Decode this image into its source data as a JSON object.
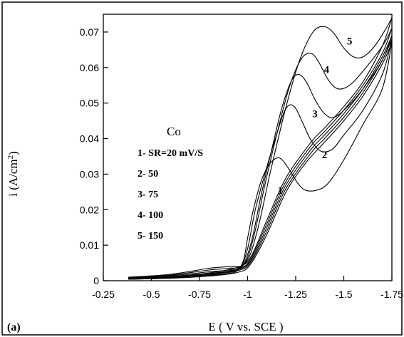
{
  "chart_data": {
    "type": "line",
    "panel_label": "(a)",
    "xlabel": "E ( V vs. SCE )",
    "ylabel": "i (A/cm",
    "ylabel_sup": "2",
    "ylabel_close": ")",
    "xlim": [
      -0.25,
      -1.75
    ],
    "ylim": [
      0,
      0.075
    ],
    "x_ticks": [
      -0.25,
      -0.5,
      -0.75,
      -1,
      -1.25,
      -1.5,
      -1.75
    ],
    "x_tick_labels": [
      "-0.25",
      "-0.5",
      "-0.75",
      "-1",
      "-1.25",
      "-1.5",
      "-1.75"
    ],
    "y_ticks": [
      0,
      0.01,
      0.02,
      0.03,
      0.04,
      0.05,
      0.06,
      0.07
    ],
    "y_tick_labels": [
      "0",
      "0.01",
      "0.02",
      "0.03",
      "0.04",
      "0.05",
      "0.06",
      "0.07"
    ],
    "annotation_title": "Co",
    "legend_lines": [
      "1- SR=20 mV/S",
      "2- 50",
      "3- 75",
      "4- 100",
      "5- 150"
    ],
    "series": [
      {
        "label": "1",
        "color": "#000000",
        "forward": [
          [
            -0.38,
            0.0005
          ],
          [
            -0.6,
            0.001
          ],
          [
            -0.8,
            0.0015
          ],
          [
            -0.9,
            0.002
          ],
          [
            -0.95,
            0.003
          ],
          [
            -0.98,
            0.006
          ],
          [
            -1.0,
            0.012
          ],
          [
            -1.03,
            0.02
          ],
          [
            -1.07,
            0.028
          ],
          [
            -1.11,
            0.0325
          ],
          [
            -1.15,
            0.0345
          ],
          [
            -1.18,
            0.034
          ],
          [
            -1.22,
            0.031
          ],
          [
            -1.26,
            0.0275
          ],
          [
            -1.3,
            0.0255
          ],
          [
            -1.36,
            0.0255
          ],
          [
            -1.42,
            0.0275
          ],
          [
            -1.5,
            0.034
          ],
          [
            -1.6,
            0.044
          ],
          [
            -1.7,
            0.054
          ],
          [
            -1.75,
            0.067
          ]
        ],
        "reverse": [
          [
            -1.75,
            0.067
          ],
          [
            -1.7,
            0.061
          ],
          [
            -1.6,
            0.052
          ],
          [
            -1.5,
            0.045
          ],
          [
            -1.4,
            0.039
          ],
          [
            -1.3,
            0.033
          ],
          [
            -1.2,
            0.025
          ],
          [
            -1.1,
            0.013
          ],
          [
            -1.02,
            0.005
          ],
          [
            -0.96,
            0.0025
          ],
          [
            -0.8,
            0.0013
          ],
          [
            -0.6,
            0.0007
          ],
          [
            -0.38,
            0.0004
          ]
        ]
      },
      {
        "label": "2",
        "color": "#000000",
        "forward": [
          [
            -0.38,
            0.0006
          ],
          [
            -0.6,
            0.0012
          ],
          [
            -0.8,
            0.002
          ],
          [
            -0.9,
            0.0025
          ],
          [
            -0.96,
            0.0035
          ],
          [
            -1.0,
            0.009
          ],
          [
            -1.04,
            0.02
          ],
          [
            -1.1,
            0.032
          ],
          [
            -1.15,
            0.041
          ],
          [
            -1.19,
            0.0475
          ],
          [
            -1.22,
            0.0495
          ],
          [
            -1.25,
            0.0485
          ],
          [
            -1.29,
            0.044
          ],
          [
            -1.33,
            0.0395
          ],
          [
            -1.38,
            0.0365
          ],
          [
            -1.44,
            0.037
          ],
          [
            -1.5,
            0.041
          ],
          [
            -1.6,
            0.048
          ],
          [
            -1.7,
            0.058
          ],
          [
            -1.75,
            0.068
          ]
        ],
        "reverse": [
          [
            -1.75,
            0.068
          ],
          [
            -1.7,
            0.062
          ],
          [
            -1.6,
            0.053
          ],
          [
            -1.5,
            0.046
          ],
          [
            -1.4,
            0.04
          ],
          [
            -1.33,
            0.036
          ],
          [
            -1.2,
            0.026
          ],
          [
            -1.1,
            0.014
          ],
          [
            -1.02,
            0.0055
          ],
          [
            -0.96,
            0.003
          ],
          [
            -0.8,
            0.0016
          ],
          [
            -0.6,
            0.0008
          ],
          [
            -0.38,
            0.0004
          ]
        ]
      },
      {
        "label": "3",
        "color": "#000000",
        "forward": [
          [
            -0.38,
            0.0007
          ],
          [
            -0.6,
            0.0014
          ],
          [
            -0.8,
            0.0025
          ],
          [
            -0.9,
            0.003
          ],
          [
            -0.97,
            0.004
          ],
          [
            -1.02,
            0.011
          ],
          [
            -1.07,
            0.024
          ],
          [
            -1.13,
            0.038
          ],
          [
            -1.18,
            0.049
          ],
          [
            -1.23,
            0.0565
          ],
          [
            -1.27,
            0.058
          ],
          [
            -1.31,
            0.0555
          ],
          [
            -1.35,
            0.051
          ],
          [
            -1.4,
            0.047
          ],
          [
            -1.45,
            0.046
          ],
          [
            -1.52,
            0.049
          ],
          [
            -1.6,
            0.054
          ],
          [
            -1.7,
            0.062
          ],
          [
            -1.75,
            0.069
          ]
        ],
        "reverse": [
          [
            -1.75,
            0.069
          ],
          [
            -1.7,
            0.063
          ],
          [
            -1.6,
            0.054
          ],
          [
            -1.5,
            0.047
          ],
          [
            -1.4,
            0.041
          ],
          [
            -1.33,
            0.037
          ],
          [
            -1.2,
            0.027
          ],
          [
            -1.1,
            0.015
          ],
          [
            -1.02,
            0.006
          ],
          [
            -0.96,
            0.0033
          ],
          [
            -0.8,
            0.0018
          ],
          [
            -0.6,
            0.0009
          ],
          [
            -0.38,
            0.0005
          ]
        ]
      },
      {
        "label": "4",
        "color": "#000000",
        "forward": [
          [
            -0.38,
            0.0008
          ],
          [
            -0.6,
            0.0016
          ],
          [
            -0.8,
            0.003
          ],
          [
            -0.9,
            0.0035
          ],
          [
            -0.98,
            0.0045
          ],
          [
            -1.03,
            0.012
          ],
          [
            -1.09,
            0.027
          ],
          [
            -1.16,
            0.043
          ],
          [
            -1.22,
            0.055
          ],
          [
            -1.28,
            0.0625
          ],
          [
            -1.33,
            0.064
          ],
          [
            -1.37,
            0.0615
          ],
          [
            -1.42,
            0.0565
          ],
          [
            -1.47,
            0.054
          ],
          [
            -1.53,
            0.055
          ],
          [
            -1.6,
            0.059
          ],
          [
            -1.7,
            0.066
          ],
          [
            -1.75,
            0.071
          ]
        ],
        "reverse": [
          [
            -1.75,
            0.071
          ],
          [
            -1.7,
            0.064
          ],
          [
            -1.6,
            0.055
          ],
          [
            -1.5,
            0.048
          ],
          [
            -1.4,
            0.042
          ],
          [
            -1.33,
            0.038
          ],
          [
            -1.2,
            0.028
          ],
          [
            -1.1,
            0.016
          ],
          [
            -1.02,
            0.0065
          ],
          [
            -0.96,
            0.0035
          ],
          [
            -0.8,
            0.002
          ],
          [
            -0.6,
            0.001
          ],
          [
            -0.38,
            0.0005
          ]
        ]
      },
      {
        "label": "5",
        "color": "#000000",
        "forward": [
          [
            -0.38,
            0.001
          ],
          [
            -0.6,
            0.0018
          ],
          [
            -0.8,
            0.0035
          ],
          [
            -0.9,
            0.004
          ],
          [
            -0.99,
            0.005
          ],
          [
            -1.05,
            0.014
          ],
          [
            -1.12,
            0.031
          ],
          [
            -1.2,
            0.049
          ],
          [
            -1.27,
            0.062
          ],
          [
            -1.34,
            0.07
          ],
          [
            -1.4,
            0.0715
          ],
          [
            -1.45,
            0.0695
          ],
          [
            -1.5,
            0.0655
          ],
          [
            -1.55,
            0.063
          ],
          [
            -1.6,
            0.063
          ],
          [
            -1.66,
            0.066
          ],
          [
            -1.72,
            0.071
          ],
          [
            -1.75,
            0.074
          ]
        ],
        "reverse": [
          [
            -1.75,
            0.074
          ],
          [
            -1.7,
            0.066
          ],
          [
            -1.6,
            0.056
          ],
          [
            -1.5,
            0.049
          ],
          [
            -1.4,
            0.043
          ],
          [
            -1.33,
            0.039
          ],
          [
            -1.2,
            0.029
          ],
          [
            -1.1,
            0.017
          ],
          [
            -1.02,
            0.007
          ],
          [
            -0.96,
            0.004
          ],
          [
            -0.8,
            0.0022
          ],
          [
            -0.6,
            0.0012
          ],
          [
            -0.38,
            0.0006
          ]
        ]
      }
    ],
    "curve_label_positions": [
      {
        "label": "1",
        "x": -1.17,
        "y": 0.0245
      },
      {
        "label": "2",
        "x": -1.4,
        "y": 0.0345
      },
      {
        "label": "3",
        "x": -1.35,
        "y": 0.046
      },
      {
        "label": "4",
        "x": -1.41,
        "y": 0.0585
      },
      {
        "label": "5",
        "x": -1.53,
        "y": 0.0665
      }
    ]
  }
}
